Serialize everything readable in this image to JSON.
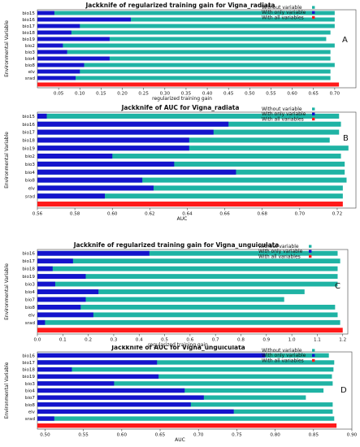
{
  "colors": {
    "without": "#1fb3a4",
    "only": "#1414cc",
    "all": "#ff1a1a"
  },
  "legend": {
    "without": "Without variable",
    "only": "With only variable",
    "all": "With all variables"
  },
  "ylabel": "Environmental Variable",
  "chart_data": [
    {
      "type": "bar",
      "title": "Jackknife of regularized training gain for Vigna_radiata",
      "xlabel": "regularized training gain",
      "panel_label": "A",
      "xlim": [
        0,
        0.75
      ],
      "xticks": [
        "0.05",
        "0.10",
        "0.15",
        "0.20",
        "0.25",
        "0.30",
        "0.35",
        "0.40",
        "0.45",
        "0.50",
        "0.55",
        "0.60",
        "0.65",
        "0.70"
      ],
      "categories": [
        "bio15",
        "bio16",
        "bio17",
        "bio18",
        "bio19",
        "bio2",
        "bio3",
        "bio4",
        "bio8",
        "elv",
        "srad"
      ],
      "series": [
        {
          "name": "Without variable",
          "values": [
            0.7,
            0.7,
            0.7,
            0.69,
            0.68,
            0.7,
            0.69,
            0.69,
            0.7,
            0.69,
            0.69
          ]
        },
        {
          "name": "With only variable",
          "values": [
            0.04,
            0.22,
            0.1,
            0.08,
            0.17,
            0.06,
            0.07,
            0.17,
            0.11,
            0.1,
            0.09
          ]
        }
      ],
      "all_variables": 0.71
    },
    {
      "type": "bar",
      "title": "Jackknife of AUC for Vigna_radiata",
      "xlabel": "AUC",
      "panel_label": "B",
      "xlim": [
        0.56,
        0.73
      ],
      "xticks": [
        "0.56",
        "0.58",
        "0.60",
        "0.62",
        "0.64",
        "0.66",
        "0.68",
        "0.70",
        "0.72"
      ],
      "categories": [
        "bio15",
        "bio16",
        "bio17",
        "bio18",
        "bio19",
        "bio2",
        "bio3",
        "bio4",
        "bio8",
        "elv",
        "srad"
      ],
      "series": [
        {
          "name": "Without variable",
          "values": [
            0.721,
            0.722,
            0.721,
            0.716,
            0.726,
            0.722,
            0.724,
            0.724,
            0.725,
            0.723,
            0.723
          ]
        },
        {
          "name": "With only variable",
          "values": [
            0.565,
            0.662,
            0.654,
            0.641,
            0.641,
            0.6,
            0.633,
            0.666,
            0.616,
            0.622,
            0.596
          ]
        }
      ],
      "all_variables": 0.723
    },
    {
      "type": "bar",
      "title": "Jackknife of regularized training gain for Vigna_unguiculata",
      "xlabel": "regularized training gain",
      "panel_label": "C",
      "xlim": [
        0,
        1.22
      ],
      "xticks": [
        "0.0",
        "0.1",
        "0.2",
        "0.3",
        "0.4",
        "0.5",
        "0.6",
        "0.7",
        "0.8",
        "0.9",
        "1.0",
        "1.1",
        "1.2"
      ],
      "categories": [
        "bio16",
        "bio17",
        "bio18",
        "bio19",
        "bio3",
        "bio4",
        "bio7",
        "bio8",
        "elv",
        "srad"
      ],
      "series": [
        {
          "name": "Without variable",
          "values": [
            1.18,
            1.19,
            1.18,
            1.18,
            1.18,
            1.05,
            0.97,
            1.17,
            1.18,
            1.19
          ]
        },
        {
          "name": "With only variable",
          "values": [
            0.44,
            0.14,
            0.06,
            0.19,
            0.07,
            0.24,
            0.19,
            0.17,
            0.22,
            0.03
          ]
        }
      ],
      "all_variables": 1.2
    },
    {
      "type": "bar",
      "title": "Jackknife of AUC for Vigna_unguiculata",
      "xlabel": "AUC",
      "panel_label": "D",
      "xlim": [
        0.49,
        0.9
      ],
      "xticks": [
        "0.50",
        "0.55",
        "0.60",
        "0.65",
        "0.70",
        "0.75",
        "0.80",
        "0.85",
        "0.90"
      ],
      "categories": [
        "bio16",
        "bio17",
        "bio18",
        "bio19",
        "bio3",
        "bio4",
        "bio7",
        "bio8",
        "elv",
        "srad"
      ],
      "series": [
        {
          "name": "Without variable",
          "values": [
            0.87,
            0.877,
            0.876,
            0.874,
            0.875,
            0.863,
            0.84,
            0.875,
            0.875,
            0.877
          ]
        },
        {
          "name": "With only variable",
          "values": [
            0.787,
            0.646,
            0.535,
            0.648,
            0.59,
            0.682,
            0.707,
            0.69,
            0.746,
            0.512
          ]
        }
      ],
      "all_variables": 0.88
    }
  ]
}
